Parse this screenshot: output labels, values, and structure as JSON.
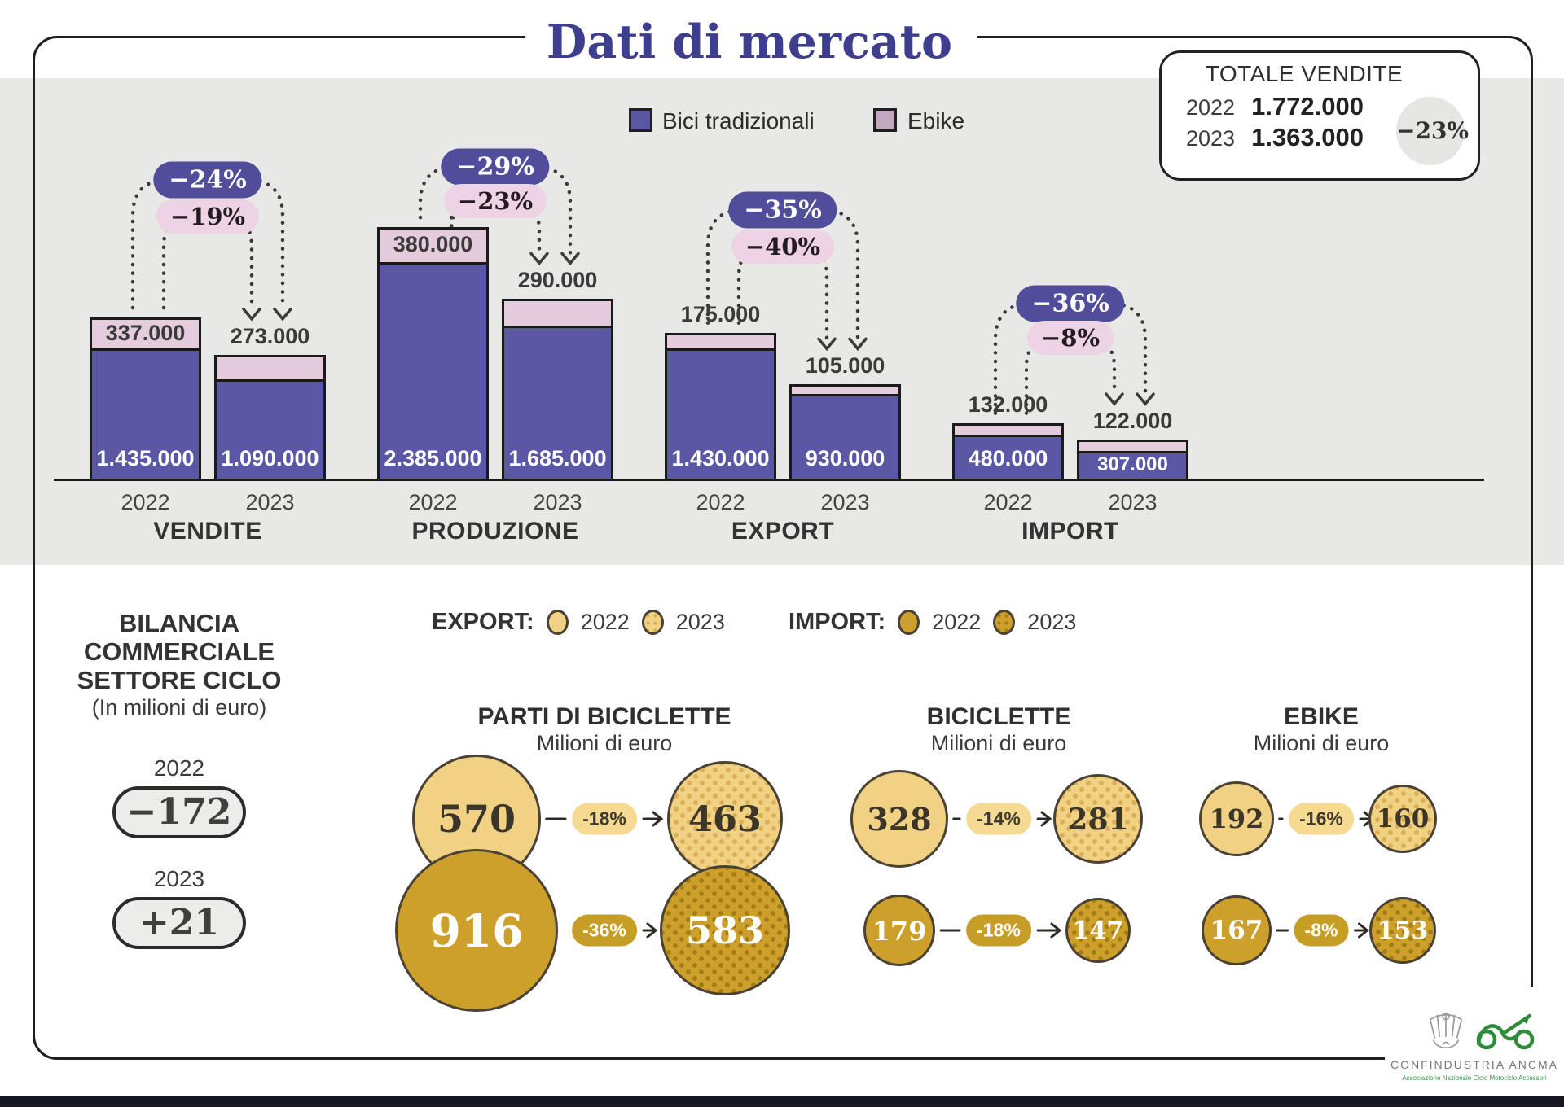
{
  "title": "Dati di mercato",
  "legend": {
    "bici": "Bici tradizionali",
    "ebike": "Ebike"
  },
  "totale_vendite": {
    "title": "TOTALE VENDITE",
    "rows": [
      {
        "year": "2022",
        "value": "1.772.000"
      },
      {
        "year": "2023",
        "value": "1.363.000"
      }
    ],
    "delta": "−23%"
  },
  "bilancia": {
    "line1": "BILANCIA",
    "line2": "COMMERCIALE",
    "line3": "SETTORE CICLO",
    "subtitle": "(In milioni di euro)",
    "items": [
      {
        "year": "2022",
        "value": "−172"
      },
      {
        "year": "2023",
        "value": "+21"
      }
    ]
  },
  "flow_legend": {
    "export_label": "EXPORT:",
    "import_label": "IMPORT:",
    "year_2022": "2022",
    "year_2023": "2023"
  },
  "footer": {
    "brand": "CONFINDUSTRIA ANCMA",
    "brand_sub": "Associazione Nazionale Ciclo Motociclo Accessori"
  },
  "colors": {
    "purple": "#5a58a5",
    "pink": "#e4ccdd",
    "badge_purple": "#504d9b",
    "badge_pink": "#edd3e4",
    "gold_light": "#f1d183",
    "gold_dark": "#cca02a",
    "band_gray": "#e8e8e6",
    "title_color": "#3e3e8e"
  },
  "chart_data": [
    {
      "type": "bar",
      "stacked": true,
      "unit": "unità",
      "series_labels": [
        "Bici tradizionali",
        "Ebike"
      ],
      "x_years": [
        "2022",
        "2023"
      ],
      "groups": [
        {
          "label": "VENDITE",
          "delta_bici": "−24%",
          "delta_ebike": "−19%",
          "bars": [
            {
              "year": "2022",
              "bici": 1435000,
              "ebike": 337000,
              "bici_label": "1.435.000",
              "ebike_label": "337.000",
              "ebike_label_position": "inside"
            },
            {
              "year": "2023",
              "bici": 1090000,
              "ebike": 273000,
              "bici_label": "1.090.000",
              "ebike_label": "273.000",
              "ebike_label_position": "above"
            }
          ]
        },
        {
          "label": "PRODUZIONE",
          "delta_bici": "−29%",
          "delta_ebike": "−23%",
          "bars": [
            {
              "year": "2022",
              "bici": 2385000,
              "ebike": 380000,
              "bici_label": "2.385.000",
              "ebike_label": "380.000",
              "ebike_label_position": "inside"
            },
            {
              "year": "2023",
              "bici": 1685000,
              "ebike": 290000,
              "bici_label": "1.685.000",
              "ebike_label": "290.000",
              "ebike_label_position": "above"
            }
          ]
        },
        {
          "label": "EXPORT",
          "delta_bici": "−35%",
          "delta_ebike": "−40%",
          "bars": [
            {
              "year": "2022",
              "bici": 1430000,
              "ebike": 175000,
              "bici_label": "1.430.000",
              "ebike_label": "175.000",
              "ebike_label_position": "above"
            },
            {
              "year": "2023",
              "bici": 930000,
              "ebike": 105000,
              "bici_label": "930.000",
              "ebike_label": "105.000",
              "ebike_label_position": "above"
            }
          ]
        },
        {
          "label": "IMPORT",
          "delta_bici": "−36%",
          "delta_ebike": "−8%",
          "bars": [
            {
              "year": "2022",
              "bici": 480000,
              "ebike": 132000,
              "bici_label": "480.000",
              "ebike_label": "132.000",
              "ebike_label_position": "above"
            },
            {
              "year": "2023",
              "bici": 307000,
              "ebike": 122000,
              "bici_label": "307.000",
              "ebike_label": "122.000",
              "ebike_label_position": "above"
            }
          ]
        }
      ]
    },
    {
      "type": "bubble",
      "unit": "Milioni di euro",
      "flows": {
        "export_years": [
          "2022",
          "2023"
        ],
        "import_years": [
          "2022",
          "2023"
        ]
      },
      "columns": [
        {
          "title": "PARTI DI BICICLETTE",
          "subtitle": "Milioni di euro",
          "rows": [
            {
              "flow": "export",
              "from": 570,
              "to": 463,
              "delta": "-18%"
            },
            {
              "flow": "import",
              "from": 916,
              "to": 583,
              "delta": "-36%"
            }
          ]
        },
        {
          "title": "BICICLETTE",
          "subtitle": "Milioni di euro",
          "rows": [
            {
              "flow": "export",
              "from": 328,
              "to": 281,
              "delta": "-14%"
            },
            {
              "flow": "import",
              "from": 179,
              "to": 147,
              "delta": "-18%"
            }
          ]
        },
        {
          "title": "EBIKE",
          "subtitle": "Milioni di euro",
          "rows": [
            {
              "flow": "export",
              "from": 192,
              "to": 160,
              "delta": "-16%"
            },
            {
              "flow": "import",
              "from": 167,
              "to": 153,
              "delta": "-8%"
            }
          ]
        }
      ]
    }
  ]
}
